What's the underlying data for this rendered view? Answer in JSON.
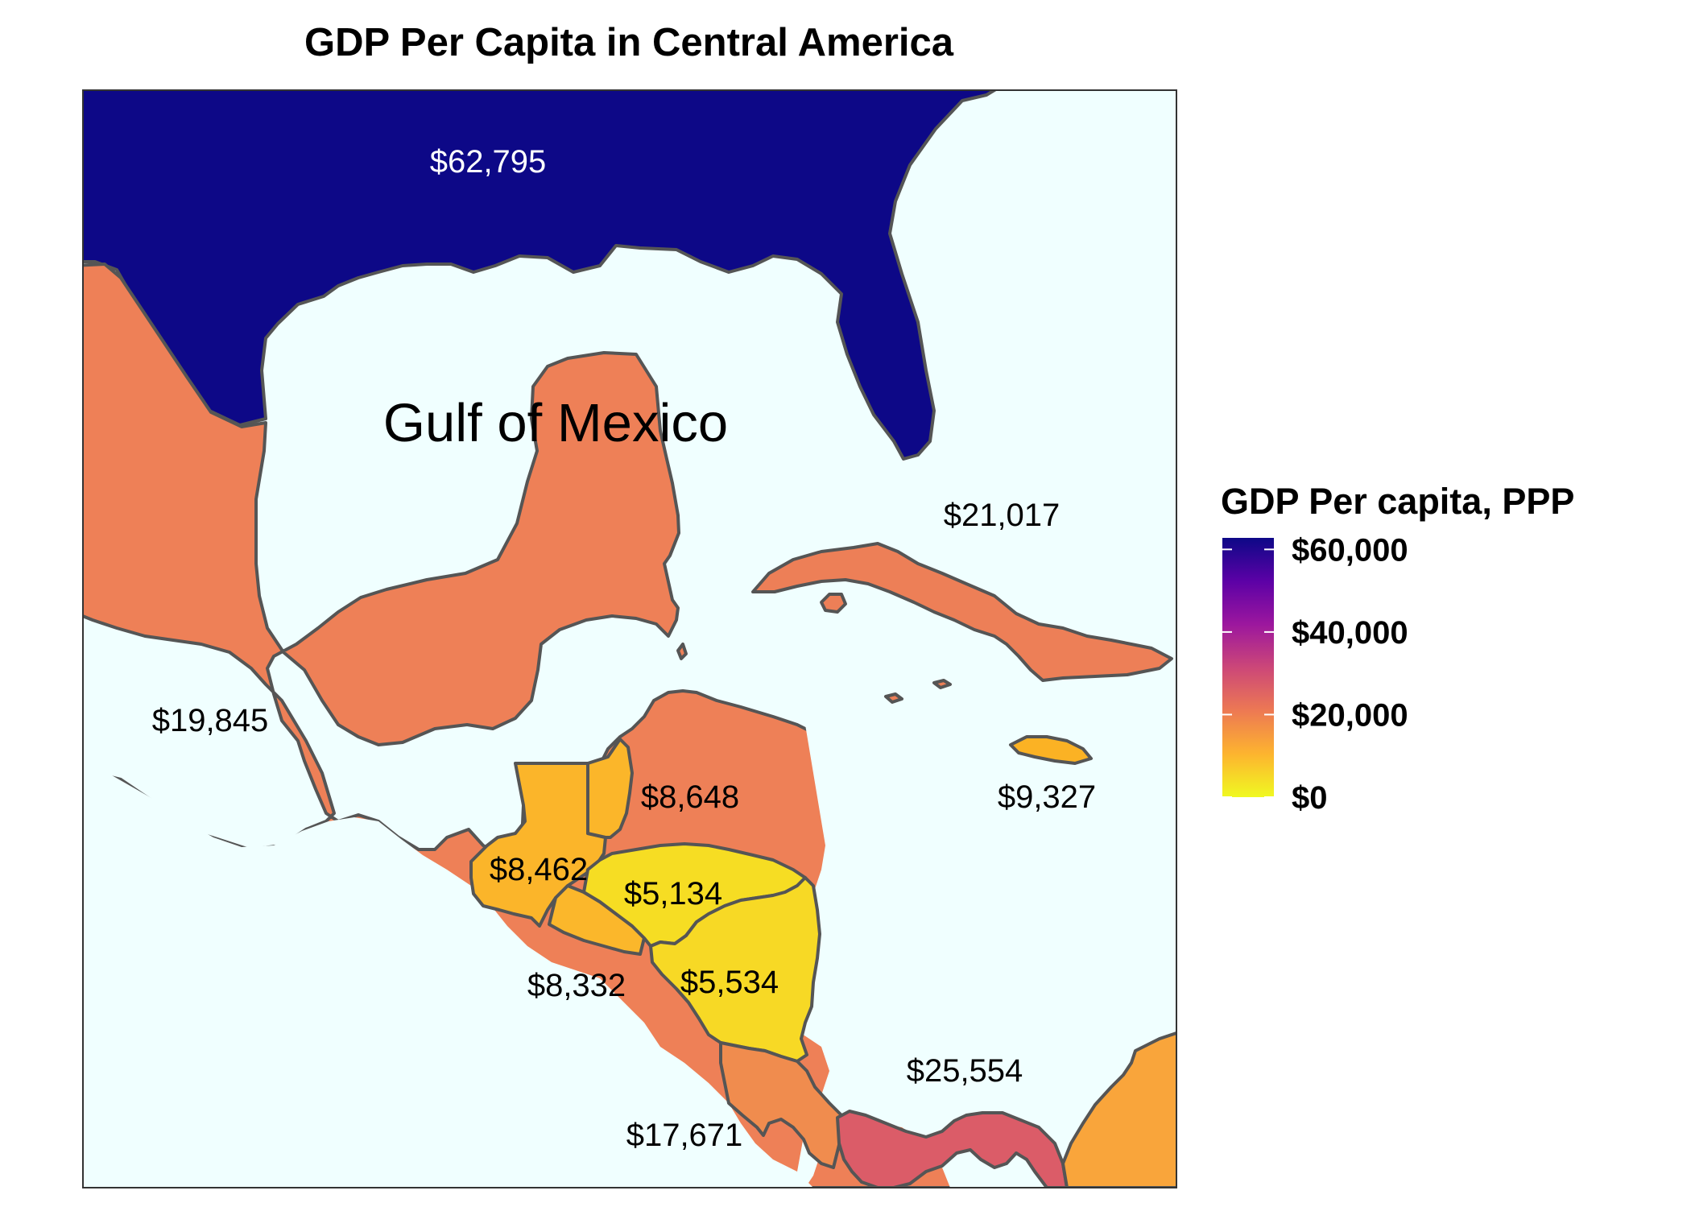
{
  "title": "GDP Per Capita in Central America",
  "sea_label": "Gulf of Mexico",
  "colors": {
    "ocean": "#f0ffff",
    "border": "#555555",
    "frame": "#333333",
    "usa": "#0d0887",
    "mexico": "#ee8057",
    "cuba": "#ed7f57",
    "jamaica": "#fbb224",
    "belize": "#fbb62a",
    "guatemala": "#fbb52a",
    "el_salvador": "#fbb72b",
    "honduras": "#f6dd23",
    "nicaragua": "#f7d925",
    "costa_rica": "#f08c4e",
    "panama": "#db5c68",
    "colombia": "#f9a53b"
  },
  "regions": [
    {
      "key": "usa",
      "name": "United States",
      "gdp_label": "$62,795",
      "value": 62795
    },
    {
      "key": "mexico",
      "name": "Mexico",
      "gdp_label": "$19,845",
      "value": 19845
    },
    {
      "key": "cuba",
      "name": "Cuba",
      "gdp_label": "$21,017",
      "value": 21017
    },
    {
      "key": "jamaica",
      "name": "Jamaica",
      "gdp_label": "$9,327",
      "value": 9327
    },
    {
      "key": "belize",
      "name": "Belize",
      "gdp_label": "$8,648",
      "value": 8648
    },
    {
      "key": "guatemala",
      "name": "Guatemala",
      "gdp_label": "$8,462",
      "value": 8462
    },
    {
      "key": "honduras",
      "name": "Honduras",
      "gdp_label": "$5,134",
      "value": 5134
    },
    {
      "key": "el_salvador",
      "name": "El Salvador",
      "gdp_label": "$8,332",
      "value": 8332
    },
    {
      "key": "nicaragua",
      "name": "Nicaragua",
      "gdp_label": "$5,534",
      "value": 5534
    },
    {
      "key": "panama",
      "name": "Panama",
      "gdp_label": "$25,554",
      "value": 25554
    },
    {
      "key": "costa_rica",
      "name": "Costa Rica",
      "gdp_label": "$17,671",
      "value": 17671
    }
  ],
  "legend": {
    "title": "GDP Per capita, PPP",
    "ticks": [
      "$60,000",
      "$40,000",
      "$20,000",
      "$0"
    ],
    "tick_values": [
      60000,
      40000,
      20000,
      0
    ],
    "min": 0,
    "max": 62795,
    "gradient": [
      "#f0f921",
      "#fdb42f",
      "#ed7953",
      "#cc4778",
      "#9c179e",
      "#5c01a6",
      "#0d0887"
    ]
  }
}
